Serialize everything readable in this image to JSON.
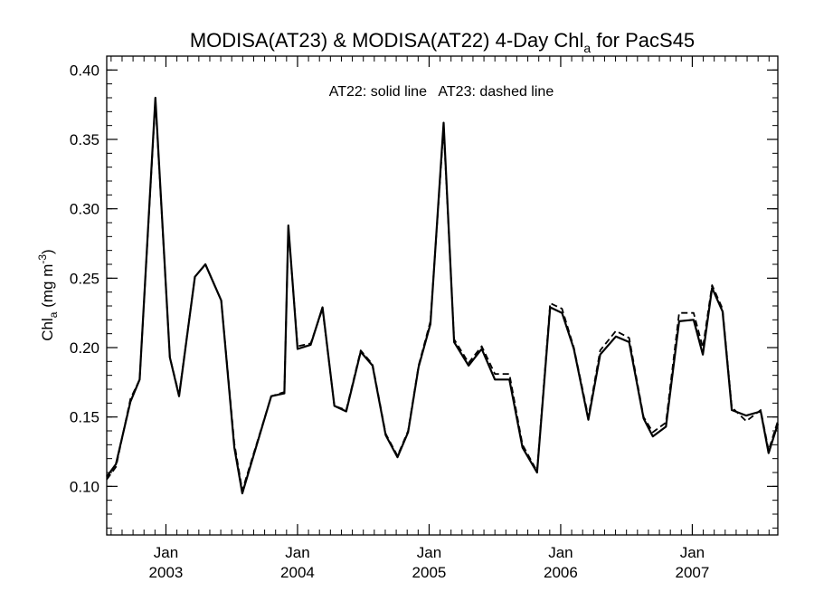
{
  "chart_data": {
    "type": "line",
    "title_main": "MODISA(AT23) & MODISA(AT22) 4-Day Chl",
    "title_sub": "a",
    "title_tail": " for PacS45",
    "ylabel_main": "Chl",
    "ylabel_sub": "a",
    "ylabel_unit": " (mg m",
    "ylabel_sup": "-3",
    "ylabel_close": ")",
    "annotation": "AT22: solid line   AT23: dashed line",
    "xlim": [
      2002.55,
      2007.65
    ],
    "ylim": [
      0.065,
      0.41
    ],
    "grid": false,
    "y_ticks": [
      "0.10",
      "0.15",
      "0.20",
      "0.25",
      "0.30",
      "0.35",
      "0.40"
    ],
    "x_ticks": [
      {
        "month": "Jan",
        "year": "2003"
      },
      {
        "month": "Jan",
        "year": "2004"
      },
      {
        "month": "Jan",
        "year": "2005"
      },
      {
        "month": "Jan",
        "year": "2006"
      },
      {
        "month": "Jan",
        "year": "2007"
      }
    ],
    "series": [
      {
        "style": "solid",
        "x": [
          2002.55,
          2002.62,
          2002.73,
          2002.8,
          2002.92,
          2003.03,
          2003.1,
          2003.22,
          2003.3,
          2003.42,
          2003.52,
          2003.58,
          2003.8,
          2003.9,
          2003.93,
          2004.0,
          2004.1,
          2004.19,
          2004.28,
          2004.37,
          2004.48,
          2004.57,
          2004.67,
          2004.76,
          2004.84,
          2004.92,
          2005.01,
          2005.11,
          2005.19,
          2005.3,
          2005.4,
          2005.5,
          2005.61,
          2005.71,
          2005.82,
          2005.92,
          2006.01,
          2006.1,
          2006.21,
          2006.3,
          2006.42,
          2006.52,
          2006.63,
          2006.7,
          2006.8,
          2006.9,
          2007.01,
          2007.08,
          2007.15,
          2007.23,
          2007.3,
          2007.41,
          2007.52,
          2007.58,
          2007.65
        ],
        "y": [
          0.107,
          0.116,
          0.161,
          0.177,
          0.38,
          0.193,
          0.165,
          0.251,
          0.26,
          0.234,
          0.128,
          0.095,
          0.165,
          0.167,
          0.288,
          0.199,
          0.202,
          0.229,
          0.158,
          0.154,
          0.197,
          0.187,
          0.137,
          0.121,
          0.139,
          0.186,
          0.217,
          0.362,
          0.204,
          0.187,
          0.199,
          0.177,
          0.177,
          0.128,
          0.11,
          0.229,
          0.225,
          0.199,
          0.148,
          0.195,
          0.208,
          0.204,
          0.149,
          0.136,
          0.143,
          0.219,
          0.22,
          0.195,
          0.243,
          0.226,
          0.155,
          0.151,
          0.154,
          0.124,
          0.145
        ]
      },
      {
        "style": "dashed",
        "x": [
          2002.55,
          2002.62,
          2002.73,
          2002.8,
          2002.92,
          2003.03,
          2003.1,
          2003.22,
          2003.3,
          2003.42,
          2003.52,
          2003.58,
          2003.8,
          2003.9,
          2003.93,
          2004.0,
          2004.1,
          2004.19,
          2004.28,
          2004.37,
          2004.48,
          2004.57,
          2004.67,
          2004.76,
          2004.84,
          2004.92,
          2005.01,
          2005.11,
          2005.19,
          2005.3,
          2005.4,
          2005.5,
          2005.61,
          2005.71,
          2005.82,
          2005.92,
          2006.01,
          2006.1,
          2006.21,
          2006.3,
          2006.42,
          2006.52,
          2006.63,
          2006.7,
          2006.8,
          2006.9,
          2007.01,
          2007.08,
          2007.15,
          2007.23,
          2007.3,
          2007.41,
          2007.52,
          2007.58,
          2007.65
        ],
        "y": [
          0.105,
          0.114,
          0.163,
          0.177,
          0.378,
          0.193,
          0.166,
          0.251,
          0.26,
          0.234,
          0.131,
          0.097,
          0.165,
          0.168,
          0.286,
          0.201,
          0.203,
          0.228,
          0.158,
          0.155,
          0.198,
          0.188,
          0.138,
          0.122,
          0.14,
          0.187,
          0.219,
          0.358,
          0.206,
          0.189,
          0.201,
          0.181,
          0.181,
          0.13,
          0.111,
          0.232,
          0.228,
          0.2,
          0.15,
          0.198,
          0.212,
          0.207,
          0.15,
          0.139,
          0.146,
          0.225,
          0.225,
          0.2,
          0.245,
          0.228,
          0.157,
          0.147,
          0.155,
          0.126,
          0.147
        ]
      }
    ]
  }
}
